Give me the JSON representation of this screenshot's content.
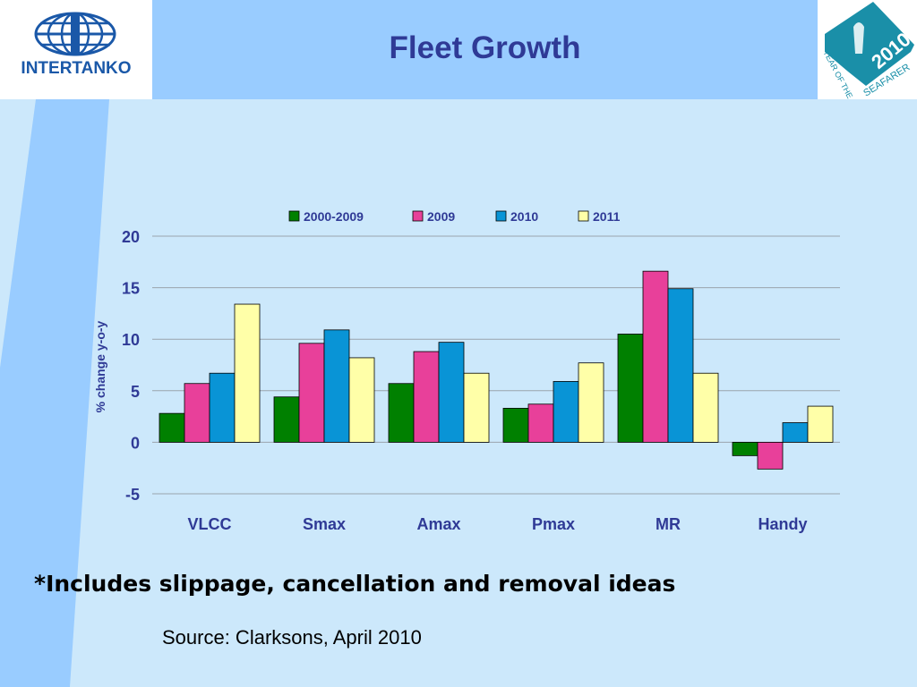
{
  "header": {
    "title": "Fleet Growth",
    "logo_text": "INTERTANKO",
    "seal_year": "2010",
    "seal_text_1": "YEAR OF THE",
    "seal_text_2": "SEAFARER"
  },
  "footnote": "*Includes slippage, cancellation and removal ideas",
  "source": "Source: Clarksons, April 2010",
  "colors": {
    "header_band": "#99ccff",
    "background": "#cce8fb",
    "title": "#2f3a96"
  },
  "chart_data": {
    "type": "bar",
    "title": "",
    "xlabel": "",
    "ylabel": "% change y-o-y",
    "ylim": [
      -5,
      20
    ],
    "yticks": [
      "20",
      "15",
      "10",
      "5",
      "0",
      "-5"
    ],
    "ytick_values": [
      20,
      15,
      10,
      5,
      0,
      -5
    ],
    "grid": true,
    "legend_position": "top",
    "categories": [
      "VLCC",
      "Smax",
      "Amax",
      "Pmax",
      "MR",
      "Handy"
    ],
    "series": [
      {
        "name": "2000-2009",
        "color": "#008000",
        "values": [
          2.8,
          4.4,
          5.7,
          3.3,
          10.5,
          -1.3
        ]
      },
      {
        "name": "2009",
        "color": "#e8409a",
        "values": [
          5.7,
          9.6,
          8.8,
          3.7,
          16.6,
          -2.6
        ]
      },
      {
        "name": "2010",
        "color": "#0994d6",
        "values": [
          6.7,
          10.9,
          9.7,
          5.9,
          14.9,
          1.9
        ]
      },
      {
        "name": "2011",
        "color": "#ffffa8",
        "values": [
          13.4,
          8.2,
          6.7,
          7.7,
          6.7,
          3.5
        ]
      }
    ]
  }
}
